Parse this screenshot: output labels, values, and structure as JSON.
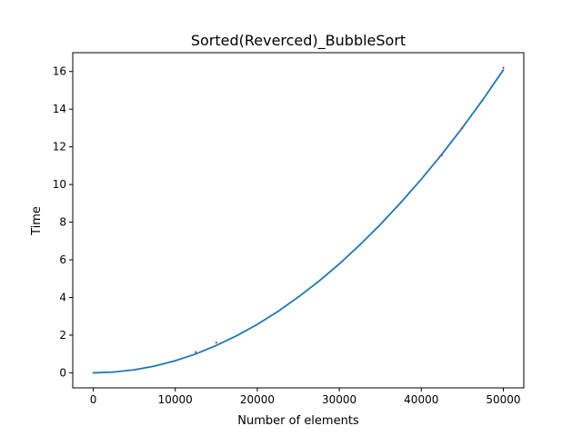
{
  "chart_data": {
    "type": "line",
    "title": "Sorted(Reverced)_BubbleSort",
    "xlabel": "Number of elements",
    "ylabel": "Time",
    "xlim": [
      -2500,
      52500
    ],
    "ylim": [
      -0.8,
      17
    ],
    "grid": false,
    "legend": "none",
    "xticks": [
      0,
      10000,
      20000,
      30000,
      40000,
      50000
    ],
    "yticks": [
      0,
      2,
      4,
      6,
      8,
      10,
      12,
      14,
      16
    ],
    "series": [
      {
        "color": "#1f77b4",
        "x": [
          0,
          2500,
          5000,
          7500,
          10000,
          12500,
          15000,
          17500,
          20000,
          22500,
          25000,
          27500,
          30000,
          32500,
          35000,
          37500,
          40000,
          42500,
          45000,
          47500,
          50000
        ],
        "y": [
          0.0,
          0.04,
          0.16,
          0.36,
          0.64,
          1.0,
          1.45,
          1.97,
          2.57,
          3.25,
          4.02,
          4.86,
          5.78,
          6.79,
          7.87,
          9.04,
          10.28,
          11.6,
          13.01,
          14.5,
          16.08
        ]
      },
      {
        "color": "#d62728",
        "x": [
          12500,
          15000,
          42500,
          45000,
          50000
        ],
        "y": [
          1.1,
          1.6,
          11.55,
          13.0,
          16.2
        ]
      }
    ]
  }
}
